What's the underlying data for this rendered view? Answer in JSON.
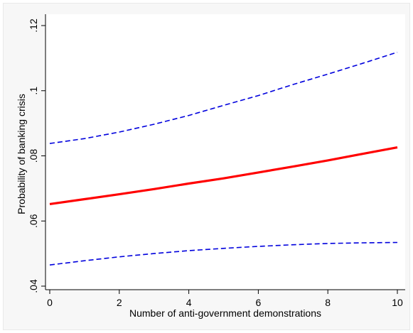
{
  "chart_data": {
    "type": "line",
    "title": "",
    "xlabel": "Number of anti-government demonstrations",
    "ylabel": "Probability of banking crisis",
    "xlim": [
      0,
      10
    ],
    "ylim": [
      0.04,
      0.12
    ],
    "xticks": [
      0,
      2,
      4,
      6,
      8,
      10
    ],
    "xtick_labels": [
      "0",
      "2",
      "4",
      "6",
      "8",
      "10"
    ],
    "yticks": [
      0.04,
      0.06,
      0.08,
      0.1,
      0.12
    ],
    "ytick_labels": [
      ".04",
      ".06",
      ".08",
      ".1",
      ".12"
    ],
    "grid": false,
    "legend": "none",
    "x": [
      0,
      1,
      2,
      3,
      4,
      5,
      6,
      7,
      8,
      9,
      10
    ],
    "series": [
      {
        "style": "solid",
        "color": "#ff0000",
        "values": [
          0.0652,
          0.0667,
          0.0682,
          0.0698,
          0.0715,
          0.0731,
          0.0749,
          0.0767,
          0.0786,
          0.0806,
          0.0826
        ]
      },
      {
        "style": "dashed",
        "color": "#0000dd",
        "values": [
          0.0838,
          0.0853,
          0.0873,
          0.0897,
          0.0924,
          0.0955,
          0.0985,
          0.1019,
          0.1051,
          0.1084,
          0.1118
        ]
      },
      {
        "style": "dashed",
        "color": "#0000dd",
        "values": [
          0.0465,
          0.0478,
          0.049,
          0.05,
          0.0509,
          0.0516,
          0.0522,
          0.0527,
          0.0531,
          0.0533,
          0.0534
        ]
      }
    ]
  }
}
